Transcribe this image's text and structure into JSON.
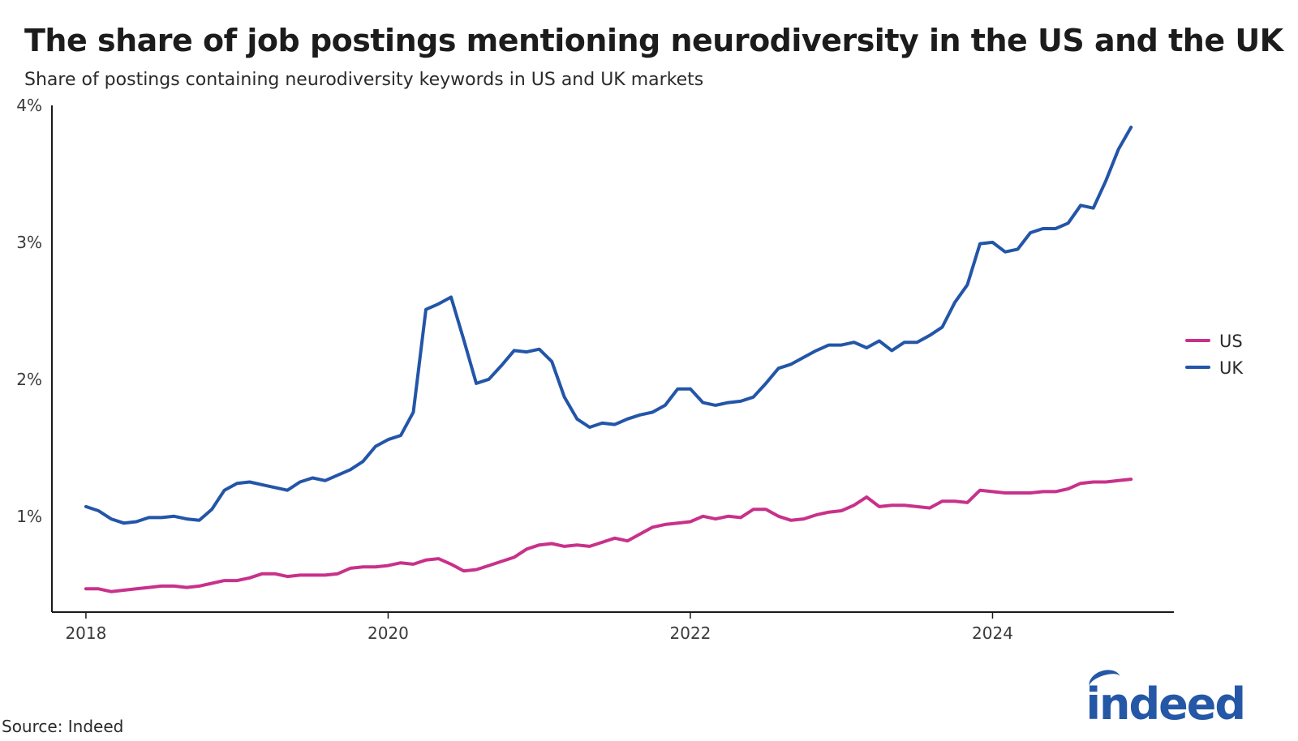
{
  "title": "The share of job postings mentioning neurodiversity in the US and the UK",
  "subtitle": "Share of postings containing neurodiversity keywords in US and UK markets",
  "source": "Source: Indeed",
  "logo_text": "indeed",
  "colors": {
    "US": "#c8318a",
    "UK": "#2355a8",
    "axis": "#1a1a1a"
  },
  "chart_data": {
    "type": "line",
    "title": "The share of job postings mentioning neurodiversity in the US and the UK",
    "subtitle": "Share of postings containing neurodiversity keywords in US and UK markets",
    "xlabel": "",
    "ylabel": "",
    "xlim": [
      "2017-10",
      "2025-04"
    ],
    "ylim": [
      0.3,
      4.0
    ],
    "y_ticks": [
      1,
      2,
      3,
      4
    ],
    "y_tick_labels": [
      "1%",
      "2%",
      "3%",
      "4%"
    ],
    "x_ticks": [
      "2018-01",
      "2020-01",
      "2022-01",
      "2024-01"
    ],
    "x_tick_labels": [
      "2018",
      "2020",
      "2022",
      "2024"
    ],
    "grid": false,
    "legend_position": "right",
    "x_start": "2018-01",
    "x_frequency": "monthly",
    "series": [
      {
        "name": "US",
        "values": [
          0.47,
          0.47,
          0.45,
          0.46,
          0.47,
          0.48,
          0.49,
          0.49,
          0.48,
          0.49,
          0.51,
          0.53,
          0.53,
          0.55,
          0.58,
          0.58,
          0.56,
          0.57,
          0.57,
          0.57,
          0.58,
          0.62,
          0.63,
          0.63,
          0.64,
          0.66,
          0.65,
          0.68,
          0.69,
          0.65,
          0.6,
          0.61,
          0.64,
          0.67,
          0.7,
          0.76,
          0.79,
          0.8,
          0.78,
          0.79,
          0.78,
          0.81,
          0.84,
          0.82,
          0.87,
          0.92,
          0.94,
          0.95,
          0.96,
          1.0,
          0.98,
          1.0,
          0.99,
          1.05,
          1.05,
          1.0,
          0.97,
          0.98,
          1.01,
          1.03,
          1.04,
          1.08,
          1.14,
          1.07,
          1.08,
          1.08,
          1.07,
          1.06,
          1.11,
          1.11,
          1.1,
          1.19,
          1.18,
          1.17,
          1.17,
          1.17,
          1.18,
          1.18,
          1.2,
          1.24,
          1.25,
          1.25,
          1.26,
          1.27
        ]
      },
      {
        "name": "UK",
        "values": [
          1.07,
          1.04,
          0.98,
          0.95,
          0.96,
          0.99,
          0.99,
          1.0,
          0.98,
          0.97,
          1.05,
          1.19,
          1.24,
          1.25,
          1.23,
          1.21,
          1.19,
          1.25,
          1.28,
          1.26,
          1.3,
          1.34,
          1.4,
          1.51,
          1.56,
          1.59,
          1.76,
          2.51,
          2.55,
          2.6,
          2.29,
          1.97,
          2.0,
          2.1,
          2.21,
          2.2,
          2.22,
          2.13,
          1.87,
          1.71,
          1.65,
          1.68,
          1.67,
          1.71,
          1.74,
          1.76,
          1.81,
          1.93,
          1.93,
          1.83,
          1.81,
          1.83,
          1.84,
          1.87,
          1.97,
          2.08,
          2.11,
          2.16,
          2.21,
          2.25,
          2.25,
          2.27,
          2.23,
          2.28,
          2.21,
          2.27,
          2.27,
          2.32,
          2.38,
          2.56,
          2.69,
          2.99,
          3.0,
          2.93,
          2.95,
          3.07,
          3.1,
          3.1,
          3.14,
          3.27,
          3.25,
          3.45,
          3.68,
          3.84
        ]
      }
    ]
  }
}
